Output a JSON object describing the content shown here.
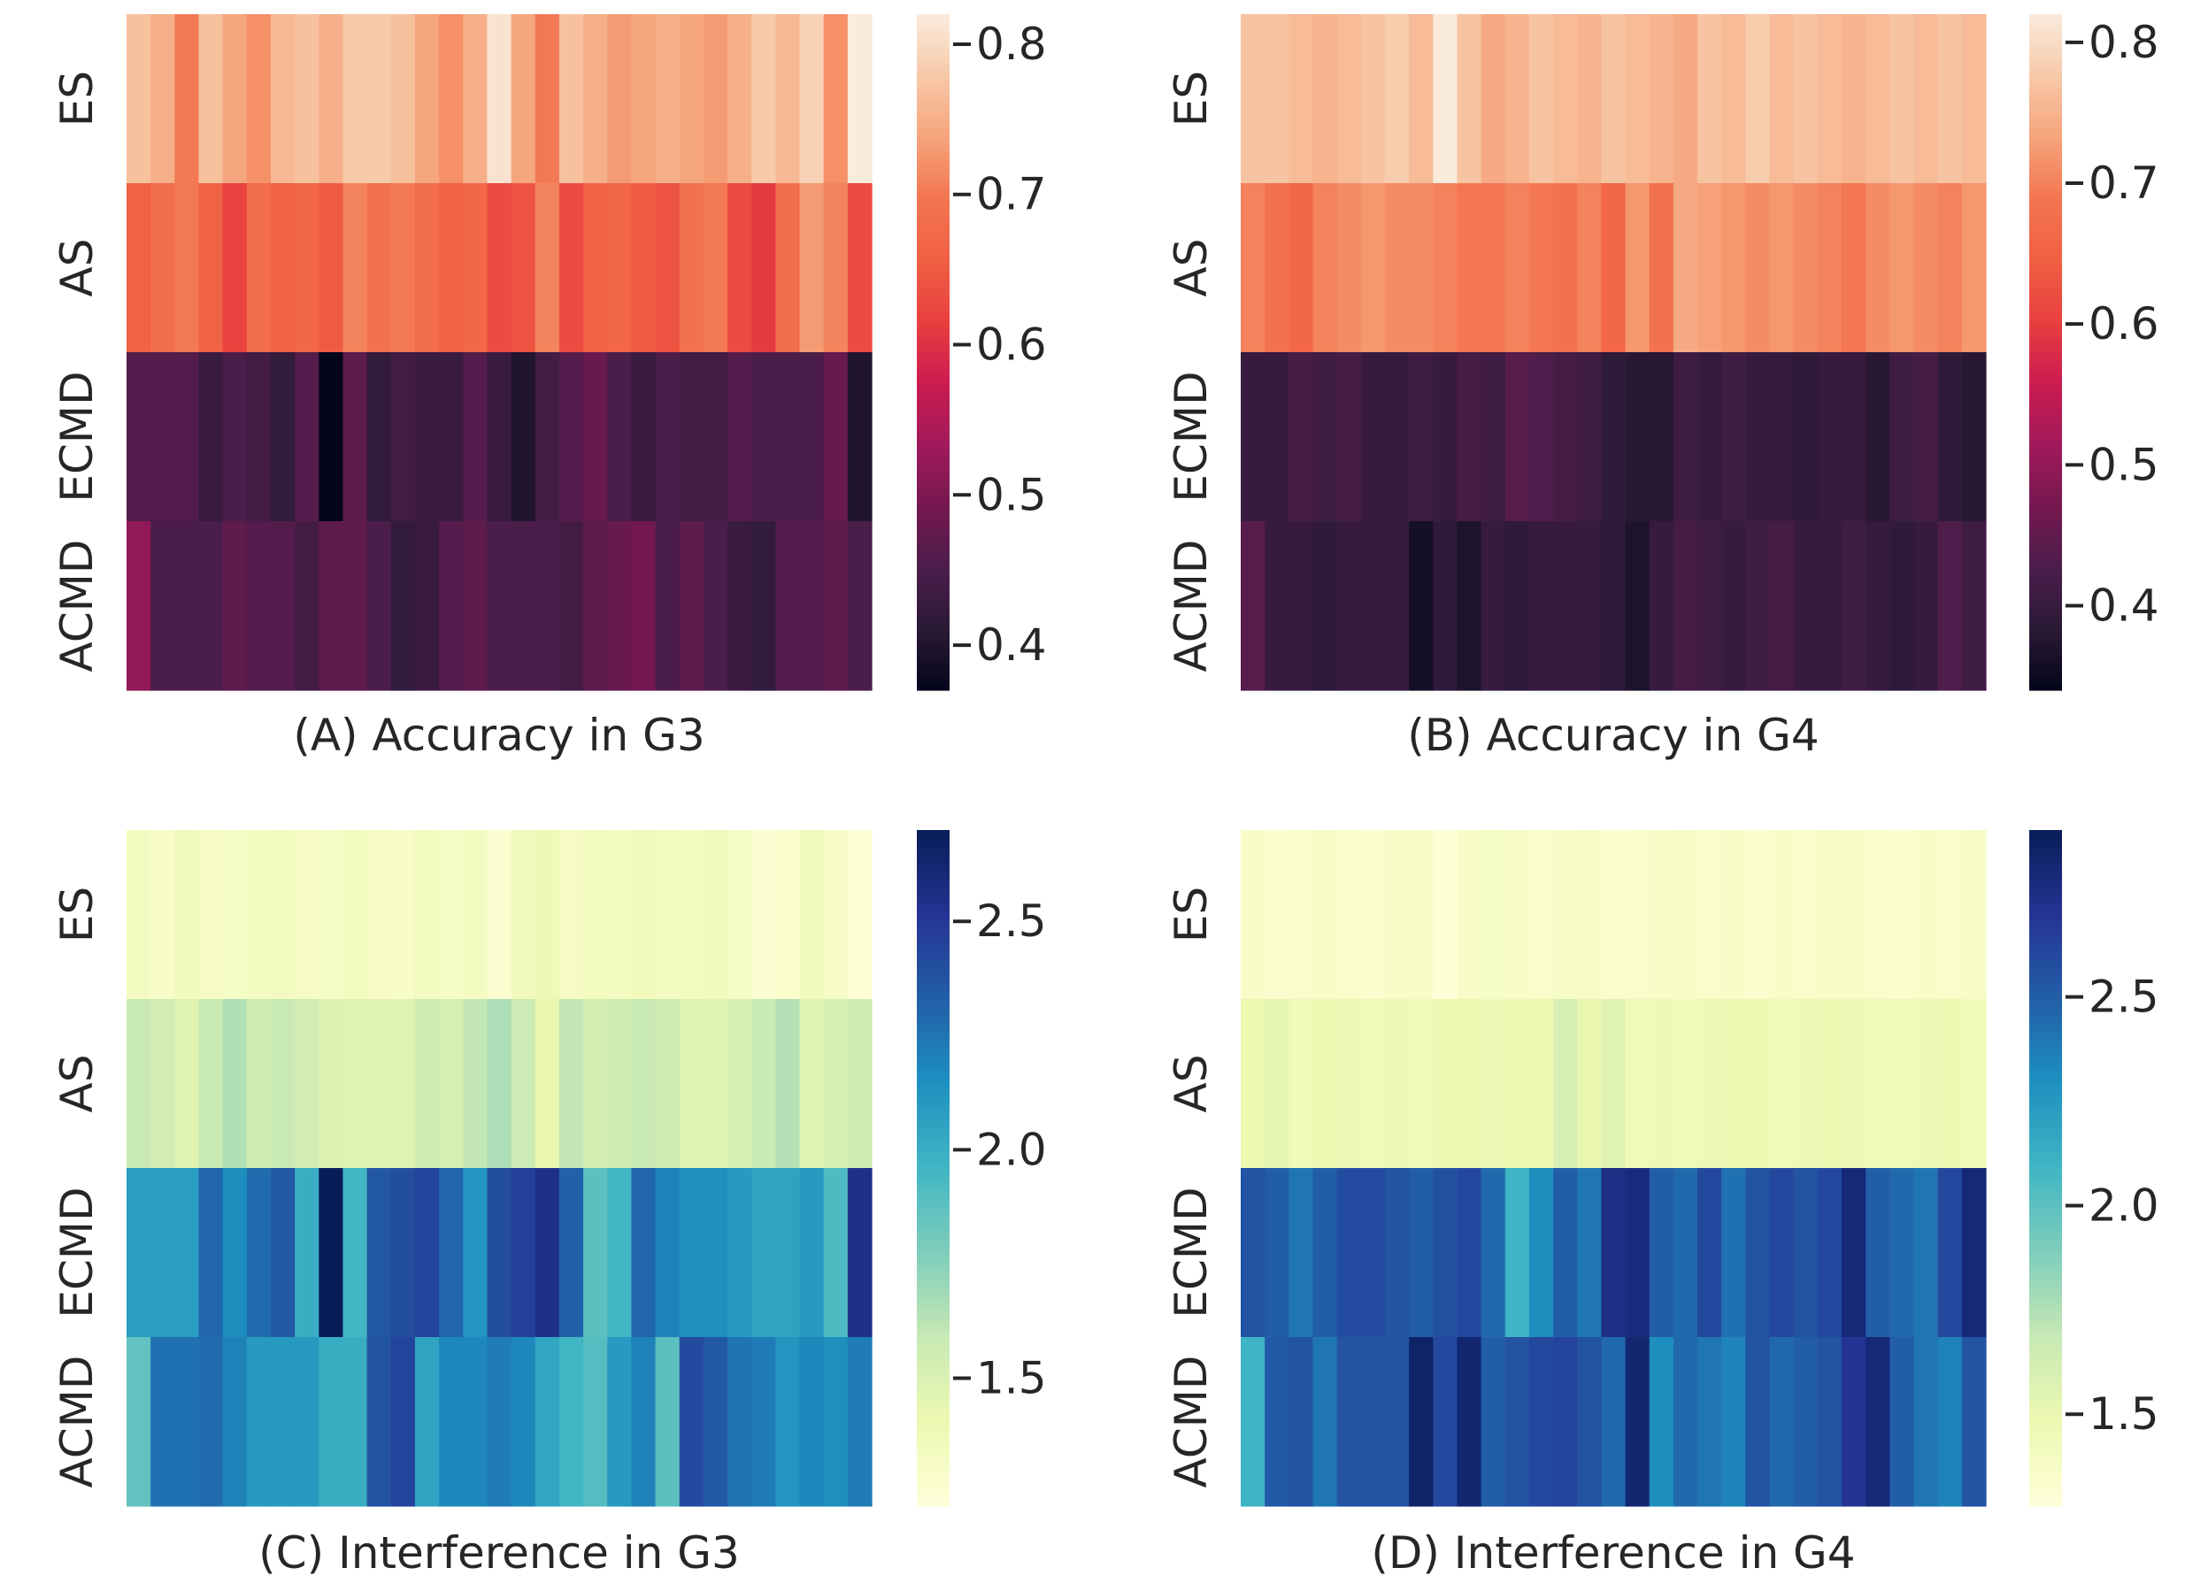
{
  "chart_data": [
    {
      "type": "heatmap",
      "title": "(A) Accuracy in G3",
      "rows": [
        "ES",
        "AS",
        "ECMD",
        "ACMD"
      ],
      "colormap": "rocket",
      "vmin": 0.37,
      "vmax": 0.82,
      "colorbar_ticks": [
        {
          "value": 0.8,
          "label": "0.8"
        },
        {
          "value": 0.7,
          "label": "0.7"
        },
        {
          "value": 0.6,
          "label": "0.6"
        },
        {
          "value": 0.5,
          "label": "0.5"
        },
        {
          "value": 0.4,
          "label": "0.4"
        }
      ],
      "values": [
        [
          0.77,
          0.75,
          0.7,
          0.77,
          0.74,
          0.72,
          0.76,
          0.77,
          0.75,
          0.78,
          0.78,
          0.77,
          0.74,
          0.72,
          0.75,
          0.81,
          0.74,
          0.7,
          0.77,
          0.75,
          0.73,
          0.74,
          0.75,
          0.74,
          0.73,
          0.75,
          0.78,
          0.76,
          0.79,
          0.72,
          0.82
        ],
        [
          0.66,
          0.68,
          0.7,
          0.66,
          0.62,
          0.68,
          0.66,
          0.67,
          0.65,
          0.71,
          0.69,
          0.7,
          0.68,
          0.66,
          0.67,
          0.63,
          0.64,
          0.71,
          0.63,
          0.66,
          0.67,
          0.65,
          0.64,
          0.69,
          0.7,
          0.63,
          0.61,
          0.68,
          0.73,
          0.71,
          0.63
        ],
        [
          0.46,
          0.46,
          0.46,
          0.43,
          0.45,
          0.44,
          0.42,
          0.46,
          0.37,
          0.47,
          0.42,
          0.44,
          0.43,
          0.43,
          0.46,
          0.43,
          0.4,
          0.44,
          0.46,
          0.48,
          0.45,
          0.43,
          0.45,
          0.44,
          0.44,
          0.46,
          0.45,
          0.45,
          0.45,
          0.48,
          0.4
        ],
        [
          0.52,
          0.45,
          0.45,
          0.45,
          0.47,
          0.46,
          0.46,
          0.44,
          0.47,
          0.47,
          0.45,
          0.42,
          0.43,
          0.46,
          0.47,
          0.45,
          0.45,
          0.45,
          0.44,
          0.47,
          0.48,
          0.49,
          0.45,
          0.47,
          0.45,
          0.43,
          0.42,
          0.46,
          0.46,
          0.47,
          0.45
        ]
      ]
    },
    {
      "type": "heatmap",
      "title": "(B) Accuracy in G4",
      "rows": [
        "ES",
        "AS",
        "ECMD",
        "ACMD"
      ],
      "colormap": "rocket",
      "vmin": 0.34,
      "vmax": 0.82,
      "colorbar_ticks": [
        {
          "value": 0.8,
          "label": "0.8"
        },
        {
          "value": 0.7,
          "label": "0.7"
        },
        {
          "value": 0.6,
          "label": "0.6"
        },
        {
          "value": 0.5,
          "label": "0.5"
        },
        {
          "value": 0.4,
          "label": "0.4"
        }
      ],
      "values": [
        [
          0.77,
          0.77,
          0.76,
          0.75,
          0.76,
          0.77,
          0.78,
          0.76,
          0.82,
          0.77,
          0.74,
          0.75,
          0.77,
          0.76,
          0.75,
          0.77,
          0.76,
          0.75,
          0.74,
          0.77,
          0.76,
          0.78,
          0.76,
          0.77,
          0.76,
          0.75,
          0.76,
          0.77,
          0.76,
          0.77,
          0.76
        ],
        [
          0.7,
          0.68,
          0.66,
          0.7,
          0.71,
          0.72,
          0.71,
          0.71,
          0.7,
          0.69,
          0.69,
          0.7,
          0.69,
          0.68,
          0.7,
          0.66,
          0.72,
          0.68,
          0.74,
          0.73,
          0.72,
          0.71,
          0.72,
          0.71,
          0.7,
          0.69,
          0.71,
          0.72,
          0.71,
          0.7,
          0.72
        ],
        [
          0.4,
          0.4,
          0.42,
          0.41,
          0.42,
          0.4,
          0.4,
          0.41,
          0.4,
          0.42,
          0.41,
          0.44,
          0.43,
          0.42,
          0.41,
          0.39,
          0.38,
          0.38,
          0.41,
          0.4,
          0.41,
          0.4,
          0.4,
          0.39,
          0.4,
          0.4,
          0.38,
          0.41,
          0.42,
          0.39,
          0.38
        ],
        [
          0.44,
          0.4,
          0.4,
          0.39,
          0.4,
          0.4,
          0.4,
          0.36,
          0.39,
          0.37,
          0.4,
          0.39,
          0.4,
          0.4,
          0.4,
          0.39,
          0.37,
          0.4,
          0.42,
          0.41,
          0.4,
          0.41,
          0.42,
          0.4,
          0.4,
          0.41,
          0.4,
          0.39,
          0.4,
          0.43,
          0.41
        ]
      ]
    },
    {
      "type": "heatmap",
      "title": "(C) Interference in G3",
      "rows": [
        "ES",
        "AS",
        "ECMD",
        "ACMD"
      ],
      "colormap": "YlGnBu",
      "vmin": 1.22,
      "vmax": 2.7,
      "colorbar_ticks": [
        {
          "value": 2.5,
          "label": "2.5"
        },
        {
          "value": 2.0,
          "label": "2.0"
        },
        {
          "value": 1.5,
          "label": "1.5"
        }
      ],
      "values": [
        [
          1.33,
          1.3,
          1.36,
          1.32,
          1.31,
          1.33,
          1.34,
          1.32,
          1.31,
          1.34,
          1.32,
          1.3,
          1.34,
          1.31,
          1.33,
          1.26,
          1.36,
          1.38,
          1.32,
          1.35,
          1.33,
          1.36,
          1.34,
          1.33,
          1.36,
          1.31,
          1.26,
          1.28,
          1.36,
          1.3,
          1.24
        ],
        [
          1.58,
          1.54,
          1.48,
          1.58,
          1.65,
          1.55,
          1.58,
          1.54,
          1.49,
          1.48,
          1.46,
          1.48,
          1.55,
          1.52,
          1.6,
          1.66,
          1.56,
          1.42,
          1.6,
          1.53,
          1.55,
          1.58,
          1.55,
          1.48,
          1.46,
          1.5,
          1.58,
          1.64,
          1.46,
          1.5,
          1.55
        ],
        [
          2.08,
          2.08,
          2.08,
          2.3,
          2.16,
          2.28,
          2.35,
          2.0,
          2.7,
          1.96,
          2.36,
          2.4,
          2.45,
          2.3,
          2.12,
          2.4,
          2.46,
          2.55,
          2.32,
          1.88,
          1.96,
          2.3,
          2.2,
          2.15,
          2.15,
          2.1,
          2.05,
          2.05,
          2.1,
          1.92,
          2.55
        ],
        [
          1.86,
          2.26,
          2.26,
          2.28,
          2.2,
          2.1,
          2.1,
          2.1,
          2.0,
          2.0,
          2.38,
          2.45,
          2.05,
          2.18,
          2.18,
          2.22,
          2.18,
          2.04,
          1.96,
          1.9,
          2.1,
          2.2,
          1.88,
          2.42,
          2.35,
          2.25,
          2.22,
          2.12,
          2.18,
          2.15,
          2.22
        ]
      ]
    },
    {
      "type": "heatmap",
      "title": "(D) Interference in G4",
      "rows": [
        "ES",
        "AS",
        "ECMD",
        "ACMD"
      ],
      "colormap": "YlGnBu",
      "vmin": 1.28,
      "vmax": 2.9,
      "colorbar_ticks": [
        {
          "value": 2.5,
          "label": "2.5"
        },
        {
          "value": 2.0,
          "label": "2.0"
        },
        {
          "value": 1.5,
          "label": "1.5"
        }
      ],
      "values": [
        [
          1.36,
          1.34,
          1.35,
          1.37,
          1.35,
          1.33,
          1.36,
          1.36,
          1.29,
          1.36,
          1.38,
          1.37,
          1.35,
          1.36,
          1.37,
          1.33,
          1.35,
          1.36,
          1.37,
          1.35,
          1.36,
          1.34,
          1.36,
          1.35,
          1.37,
          1.36,
          1.35,
          1.34,
          1.36,
          1.35,
          1.37
        ],
        [
          1.48,
          1.52,
          1.45,
          1.47,
          1.46,
          1.45,
          1.46,
          1.45,
          1.47,
          1.48,
          1.46,
          1.48,
          1.47,
          1.6,
          1.5,
          1.55,
          1.45,
          1.46,
          1.44,
          1.46,
          1.47,
          1.48,
          1.45,
          1.46,
          1.47,
          1.46,
          1.45,
          1.44,
          1.46,
          1.47,
          1.45
        ],
        [
          2.55,
          2.5,
          2.4,
          2.5,
          2.58,
          2.58,
          2.55,
          2.5,
          2.56,
          2.6,
          2.45,
          2.1,
          2.3,
          2.5,
          2.4,
          2.75,
          2.78,
          2.5,
          2.45,
          2.6,
          2.42,
          2.55,
          2.6,
          2.55,
          2.6,
          2.8,
          2.5,
          2.45,
          2.4,
          2.6,
          2.8
        ],
        [
          2.1,
          2.52,
          2.55,
          2.4,
          2.55,
          2.55,
          2.55,
          2.85,
          2.6,
          2.82,
          2.5,
          2.55,
          2.6,
          2.62,
          2.55,
          2.45,
          2.82,
          2.3,
          2.45,
          2.4,
          2.35,
          2.55,
          2.45,
          2.5,
          2.55,
          2.7,
          2.8,
          2.5,
          2.4,
          2.35,
          2.55
        ]
      ]
    }
  ]
}
